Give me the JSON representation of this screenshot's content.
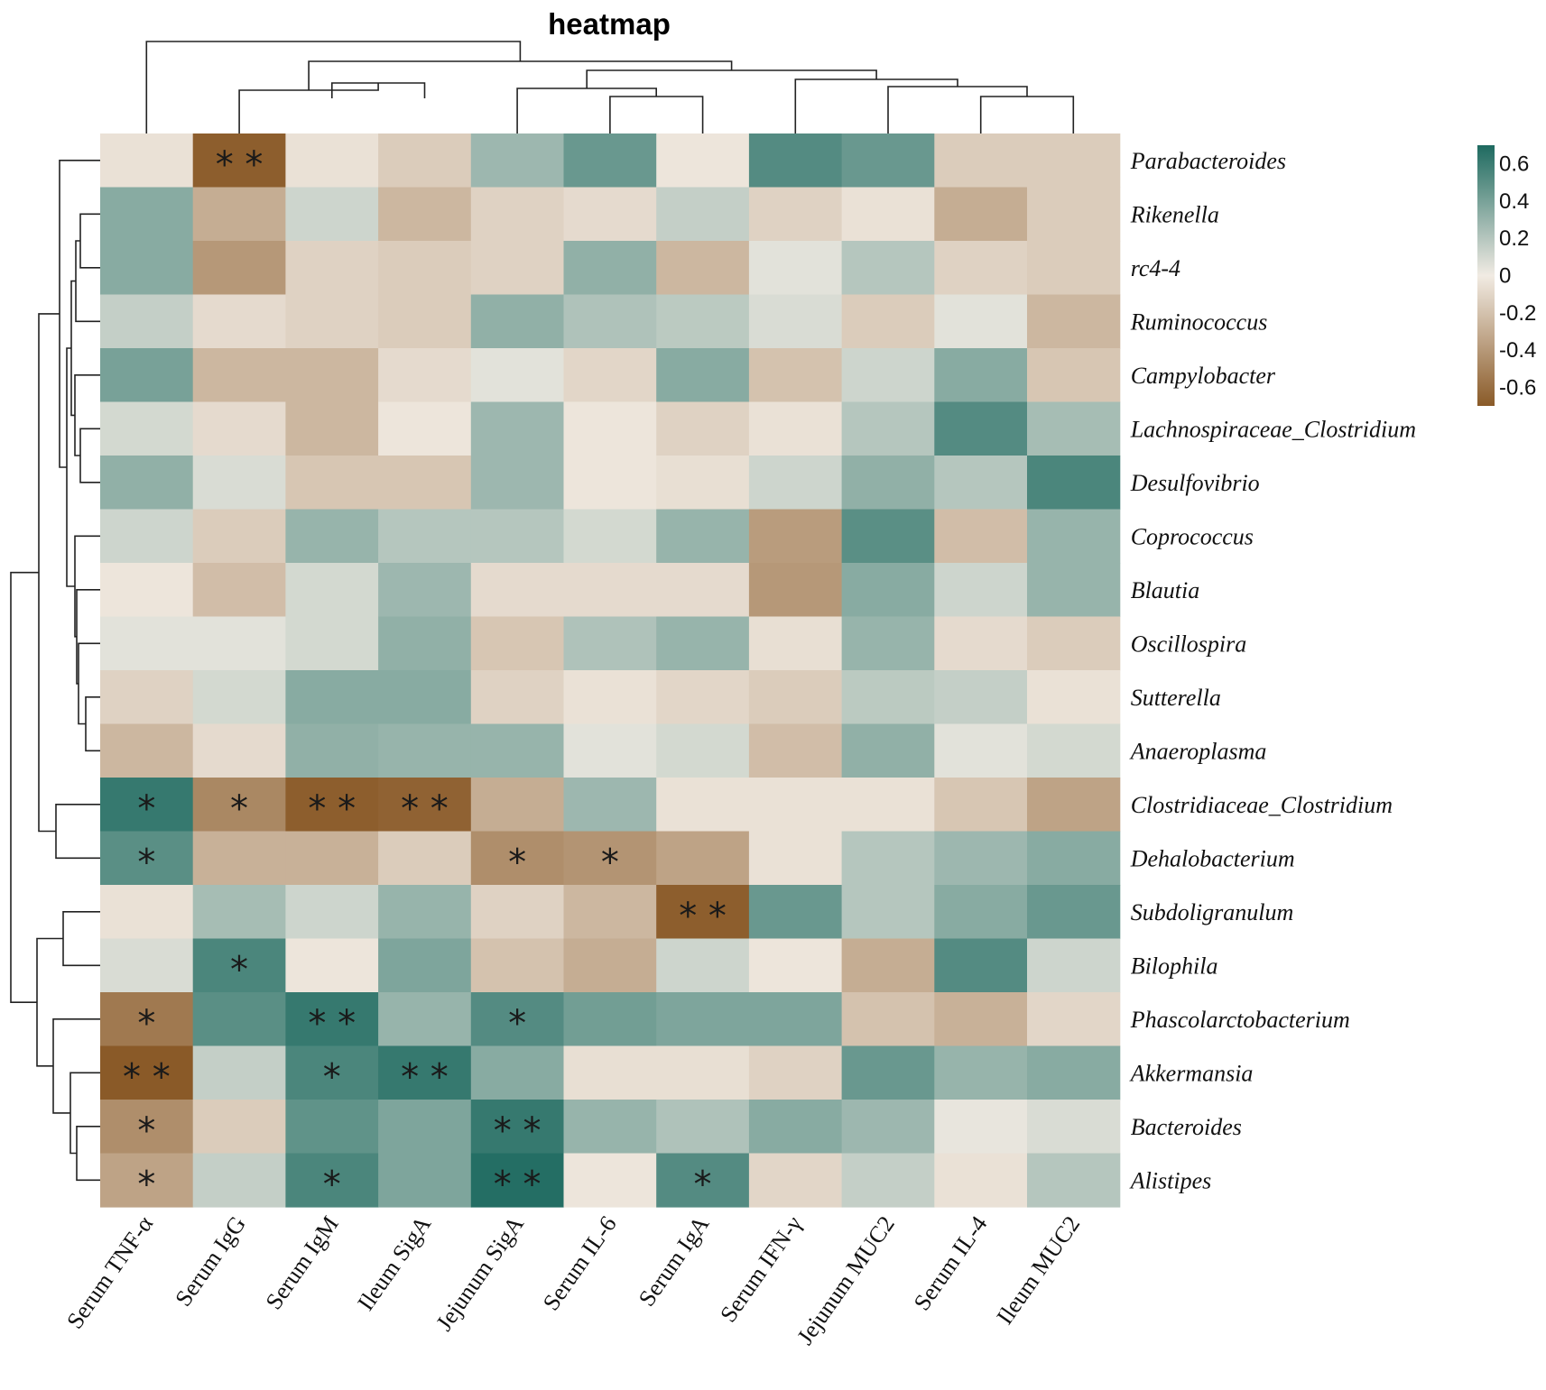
{
  "chart_data": {
    "type": "heatmap",
    "title": "heatmap",
    "columns": [
      "Serum TNF-α",
      "Serum IgG",
      "Serum IgM",
      "Ileum SigA",
      "Jejunum SigA",
      "Serum IL-6",
      "Serum IgA",
      "Serum IFN-γ",
      "Jejunum MUC2",
      "Serum IL-4",
      "Ileum MUC2"
    ],
    "rows": [
      "Parabacteroides",
      "Rikenella",
      "rc4-4",
      "Ruminococcus",
      "Campylobacter",
      "Lachnospiraceae_Clostridium",
      "Desulfovibrio",
      "Coprococcus",
      "Blautia",
      "Oscillospira",
      "Sutterella",
      "Anaeroplasma",
      "Clostridiaceae_Clostridium",
      "Dehalobacterium",
      "Subdoligranulum",
      "Bilophila",
      "Phascolarctobacterium",
      "Akkermansia",
      "Bacteroides",
      "Alistipes"
    ],
    "values": [
      [
        -0.05,
        -0.68,
        -0.05,
        -0.15,
        0.28,
        0.45,
        -0.03,
        0.52,
        0.45,
        -0.15,
        -0.15
      ],
      [
        0.35,
        -0.3,
        0.12,
        -0.25,
        -0.12,
        -0.08,
        0.15,
        -0.12,
        -0.05,
        -0.3,
        -0.15
      ],
      [
        0.35,
        -0.4,
        -0.12,
        -0.15,
        -0.12,
        0.32,
        -0.25,
        0.05,
        0.2,
        -0.12,
        -0.15
      ],
      [
        0.15,
        -0.08,
        -0.12,
        -0.15,
        0.32,
        0.22,
        0.18,
        0.08,
        -0.15,
        0.05,
        -0.25
      ],
      [
        0.4,
        -0.25,
        -0.25,
        -0.08,
        0.05,
        -0.1,
        0.35,
        -0.2,
        0.12,
        0.35,
        -0.18
      ],
      [
        0.1,
        -0.08,
        -0.25,
        -0.03,
        0.28,
        -0.03,
        -0.12,
        -0.05,
        0.2,
        0.52,
        0.25
      ],
      [
        0.32,
        0.08,
        -0.18,
        -0.18,
        0.28,
        -0.03,
        -0.06,
        0.12,
        0.32,
        0.2,
        0.55
      ],
      [
        0.12,
        -0.15,
        0.3,
        0.2,
        0.2,
        0.1,
        0.3,
        -0.38,
        0.5,
        -0.22,
        0.3
      ],
      [
        -0.03,
        -0.22,
        0.1,
        0.28,
        -0.08,
        -0.08,
        -0.08,
        -0.4,
        0.35,
        0.12,
        0.3
      ],
      [
        0.05,
        0.05,
        0.1,
        0.32,
        -0.18,
        0.22,
        0.3,
        -0.06,
        0.3,
        -0.08,
        -0.15
      ],
      [
        -0.12,
        0.1,
        0.35,
        0.35,
        -0.12,
        -0.05,
        -0.1,
        -0.15,
        0.18,
        0.15,
        -0.05
      ],
      [
        -0.25,
        -0.08,
        0.32,
        0.3,
        0.3,
        0.05,
        0.1,
        -0.22,
        0.32,
        0.05,
        0.1
      ],
      [
        0.62,
        -0.48,
        -0.68,
        -0.66,
        -0.3,
        0.28,
        -0.05,
        -0.05,
        -0.05,
        -0.18,
        -0.35
      ],
      [
        0.5,
        -0.28,
        -0.28,
        -0.15,
        -0.45,
        -0.42,
        -0.35,
        -0.05,
        0.2,
        0.28,
        0.35
      ],
      [
        -0.05,
        0.25,
        0.12,
        0.3,
        -0.12,
        -0.25,
        -0.68,
        0.45,
        0.2,
        0.35,
        0.45
      ],
      [
        0.08,
        0.55,
        -0.03,
        0.38,
        -0.2,
        -0.3,
        0.12,
        -0.03,
        -0.3,
        0.52,
        0.12
      ],
      [
        -0.55,
        0.5,
        0.62,
        0.3,
        0.52,
        0.42,
        0.38,
        0.38,
        -0.2,
        -0.28,
        -0.1
      ],
      [
        -0.7,
        0.15,
        0.55,
        0.62,
        0.35,
        -0.06,
        -0.06,
        -0.12,
        0.45,
        0.3,
        0.35
      ],
      [
        -0.45,
        -0.15,
        0.48,
        0.38,
        0.62,
        0.3,
        0.22,
        0.35,
        0.28,
        0.03,
        0.08
      ],
      [
        -0.35,
        0.15,
        0.55,
        0.38,
        0.68,
        -0.03,
        0.52,
        -0.1,
        0.15,
        -0.05,
        0.2
      ]
    ],
    "significance": [
      [
        "",
        "**",
        "",
        "",
        "",
        "",
        "",
        "",
        "",
        "",
        ""
      ],
      [
        "",
        "",
        "",
        "",
        "",
        "",
        "",
        "",
        "",
        "",
        ""
      ],
      [
        "",
        "",
        "",
        "",
        "",
        "",
        "",
        "",
        "",
        "",
        ""
      ],
      [
        "",
        "",
        "",
        "",
        "",
        "",
        "",
        "",
        "",
        "",
        ""
      ],
      [
        "",
        "",
        "",
        "",
        "",
        "",
        "",
        "",
        "",
        "",
        ""
      ],
      [
        "",
        "",
        "",
        "",
        "",
        "",
        "",
        "",
        "",
        "",
        ""
      ],
      [
        "",
        "",
        "",
        "",
        "",
        "",
        "",
        "",
        "",
        "",
        ""
      ],
      [
        "",
        "",
        "",
        "",
        "",
        "",
        "",
        "",
        "",
        "",
        ""
      ],
      [
        "",
        "",
        "",
        "",
        "",
        "",
        "",
        "",
        "",
        "",
        ""
      ],
      [
        "",
        "",
        "",
        "",
        "",
        "",
        "",
        "",
        "",
        "",
        ""
      ],
      [
        "",
        "",
        "",
        "",
        "",
        "",
        "",
        "",
        "",
        "",
        ""
      ],
      [
        "",
        "",
        "",
        "",
        "",
        "",
        "",
        "",
        "",
        "",
        ""
      ],
      [
        "*",
        "*",
        "**",
        "**",
        "",
        "",
        "",
        "",
        "",
        "",
        ""
      ],
      [
        "*",
        "",
        "",
        "",
        "*",
        "*",
        "",
        "",
        "",
        "",
        ""
      ],
      [
        "",
        "",
        "",
        "",
        "",
        "",
        "**",
        "",
        "",
        "",
        ""
      ],
      [
        "",
        "*",
        "",
        "",
        "",
        "",
        "",
        "",
        "",
        "",
        ""
      ],
      [
        "*",
        "",
        "**",
        "",
        "*",
        "",
        "",
        "",
        "",
        "",
        ""
      ],
      [
        "**",
        "",
        "*",
        "**",
        "",
        "",
        "",
        "",
        "",
        "",
        ""
      ],
      [
        "*",
        "",
        "",
        "",
        "**",
        "",
        "",
        "",
        "",
        "",
        ""
      ],
      [
        "*",
        "",
        "*",
        "",
        "**",
        "",
        "*",
        "",
        "",
        "",
        ""
      ]
    ],
    "color_scale": {
      "min": -0.7,
      "max": 0.7,
      "low_color": "#8a5a28",
      "mid_color": "#f1ebe3",
      "high_color": "#1e6a60"
    },
    "legend": {
      "position": "top-right",
      "ticks": [
        {
          "value": 0.6,
          "label": "0.6"
        },
        {
          "value": 0.4,
          "label": "0.4"
        },
        {
          "value": 0.2,
          "label": "0.2"
        },
        {
          "value": 0,
          "label": "0"
        },
        {
          "value": -0.2,
          "label": "-0.2"
        },
        {
          "value": -0.4,
          "label": "-0.4"
        },
        {
          "value": -0.6,
          "label": "-0.6"
        }
      ]
    }
  }
}
